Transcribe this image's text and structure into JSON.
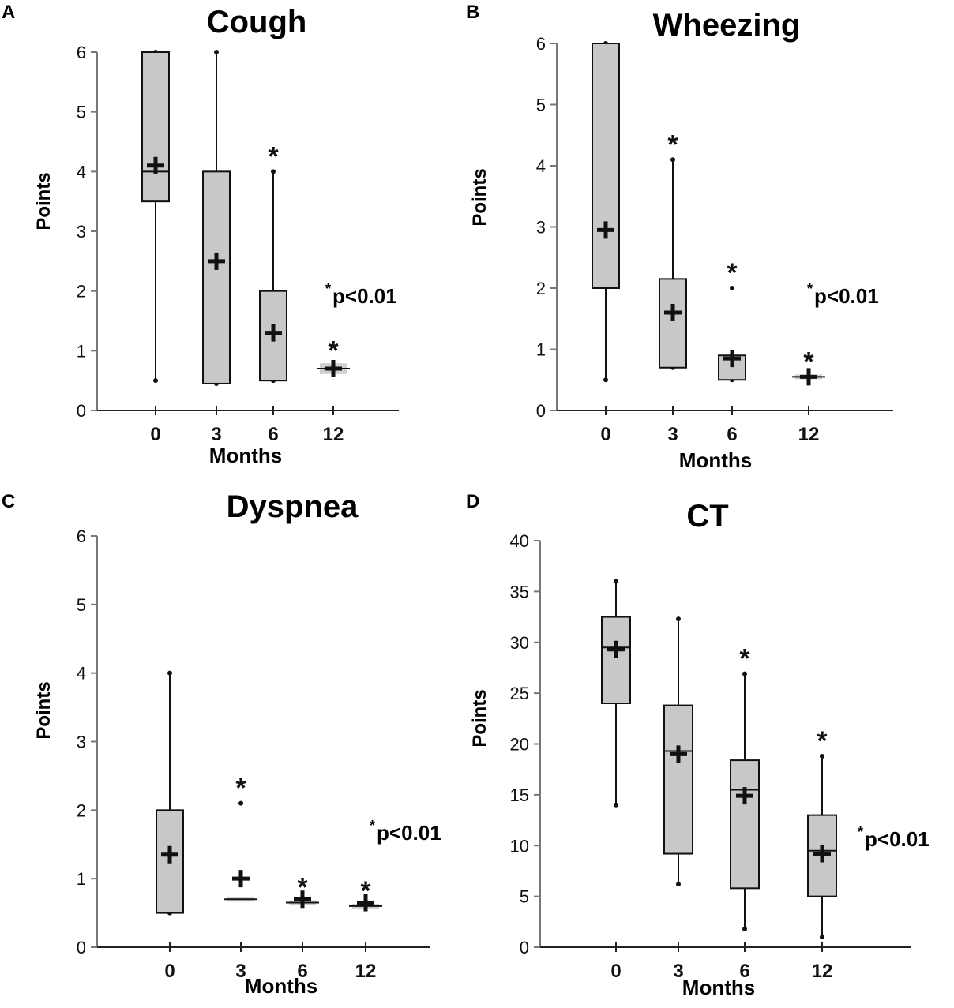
{
  "chart_data": [
    {
      "type": "box",
      "panel": "A",
      "title": "Cough",
      "xlabel": "Months",
      "ylabel": "Points",
      "ylim": [
        0,
        6
      ],
      "yticks": [
        "0",
        "1",
        "2",
        "3",
        "4",
        "5",
        "6"
      ],
      "categories": [
        "0",
        "3",
        "6",
        "12"
      ],
      "boxes": [
        {
          "whisker_low": 0.5,
          "q1": 3.5,
          "median": 4.0,
          "q3": 6.0,
          "whisker_high": 6.0,
          "mean": 4.1,
          "significant": false
        },
        {
          "whisker_low": 0.45,
          "q1": 0.45,
          "median": null,
          "q3": 4.0,
          "whisker_high": 6.0,
          "mean": 2.5,
          "significant": false
        },
        {
          "whisker_low": 0.5,
          "q1": 0.5,
          "median": null,
          "q3": 2.0,
          "whisker_high": 4.0,
          "mean": 1.3,
          "significant": true
        },
        {
          "whisker_low": 0.65,
          "q1": 0.65,
          "median": 0.7,
          "q3": 0.75,
          "whisker_high": 0.75,
          "mean": 0.7,
          "significant": true
        }
      ],
      "annotation": {
        "star": "*",
        "text": "p<0.01"
      }
    },
    {
      "type": "box",
      "panel": "B",
      "title": "Wheezing",
      "xlabel": "Months",
      "ylabel": "Points",
      "ylim": [
        0,
        6
      ],
      "yticks": [
        "0",
        "1",
        "2",
        "3",
        "4",
        "5",
        "6"
      ],
      "categories": [
        "0",
        "3",
        "6",
        "12"
      ],
      "boxes": [
        {
          "whisker_low": 0.5,
          "q1": 2.0,
          "median": null,
          "q3": 6.0,
          "whisker_high": 6.0,
          "mean": 2.95,
          "significant": false
        },
        {
          "whisker_low": 0.7,
          "q1": 0.7,
          "median": null,
          "q3": 2.15,
          "whisker_high": 4.1,
          "mean": 1.6,
          "significant": true
        },
        {
          "whisker_low": 0.5,
          "q1": 0.5,
          "median": null,
          "q3": 0.9,
          "whisker_high": 0.9,
          "mean": 0.85,
          "outliers": [
            2.0
          ],
          "significant": true
        },
        {
          "whisker_low": 0.55,
          "q1": 0.55,
          "median": 0.55,
          "q3": 0.55,
          "whisker_high": 0.55,
          "mean": 0.55,
          "significant": true
        }
      ],
      "annotation": {
        "star": "*",
        "text": "p<0.01"
      }
    },
    {
      "type": "box",
      "panel": "C",
      "title": "Dyspnea",
      "xlabel": "Months",
      "ylabel": "Points",
      "ylim": [
        0,
        6
      ],
      "yticks": [
        "0",
        "1",
        "2",
        "3",
        "4",
        "5",
        "6"
      ],
      "categories": [
        "0",
        "3",
        "6",
        "12"
      ],
      "boxes": [
        {
          "whisker_low": 0.5,
          "q1": 0.5,
          "median": null,
          "q3": 2.0,
          "whisker_high": 4.0,
          "mean": 1.35,
          "significant": false
        },
        {
          "whisker_low": 0.7,
          "q1": 0.7,
          "median": 0.7,
          "q3": 0.7,
          "whisker_high": 0.7,
          "mean": 1.0,
          "outliers": [
            2.1
          ],
          "significant": true
        },
        {
          "whisker_low": 0.65,
          "q1": 0.65,
          "median": 0.65,
          "q3": 0.65,
          "whisker_high": 0.65,
          "mean": 0.7,
          "significant": true
        },
        {
          "whisker_low": 0.6,
          "q1": 0.6,
          "median": 0.6,
          "q3": 0.6,
          "whisker_high": 0.6,
          "mean": 0.65,
          "significant": true
        }
      ],
      "annotation": {
        "star": "*",
        "text": "p<0.01"
      }
    },
    {
      "type": "box",
      "panel": "D",
      "title": "CT",
      "xlabel": "Months",
      "ylabel": "Points",
      "ylim": [
        0,
        40
      ],
      "yticks": [
        "0",
        "5",
        "10",
        "15",
        "20",
        "25",
        "30",
        "35",
        "40"
      ],
      "categories": [
        "0",
        "3",
        "6",
        "12"
      ],
      "boxes": [
        {
          "whisker_low": 14.0,
          "q1": 24.0,
          "median": 29.5,
          "q3": 32.5,
          "whisker_high": 36.0,
          "mean": 29.3,
          "significant": false
        },
        {
          "whisker_low": 6.2,
          "q1": 9.2,
          "median": 19.3,
          "q3": 23.8,
          "whisker_high": 32.3,
          "mean": 19.0,
          "significant": false
        },
        {
          "whisker_low": 1.8,
          "q1": 5.8,
          "median": 15.5,
          "q3": 18.4,
          "whisker_high": 26.9,
          "mean": 14.9,
          "significant": true
        },
        {
          "whisker_low": 1.0,
          "q1": 5.0,
          "median": 9.5,
          "q3": 13.0,
          "whisker_high": 18.8,
          "mean": 9.2,
          "significant": true
        }
      ],
      "annotation": {
        "star": "*",
        "text": "p<0.01"
      }
    }
  ]
}
